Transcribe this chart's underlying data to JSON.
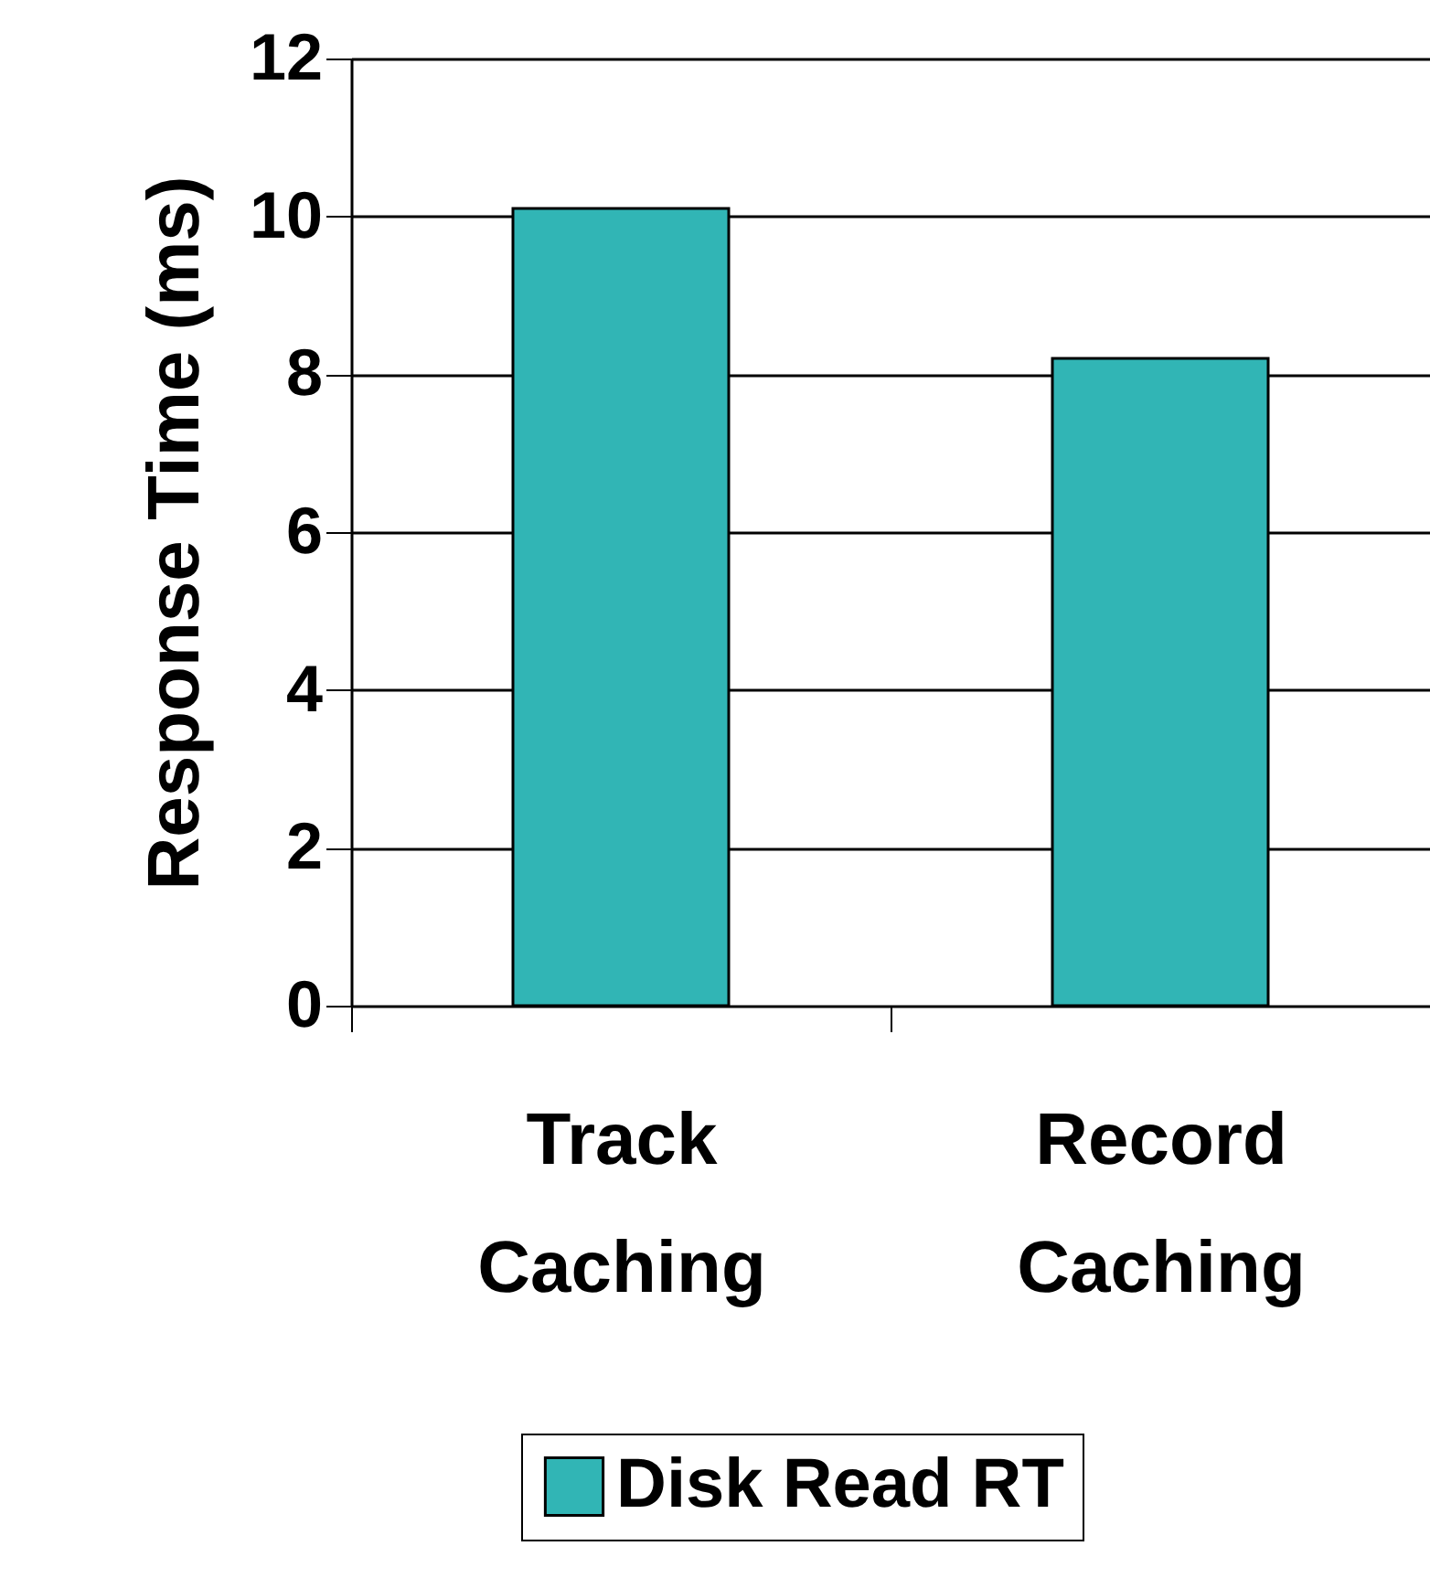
{
  "chart_data": {
    "type": "bar",
    "ylabel": "Response Time (ms)",
    "categories": [
      "Track Caching",
      "Record Caching"
    ],
    "series": [
      {
        "name": "Disk Read RT",
        "color": "#31b5b5",
        "values": [
          10.1,
          8.2
        ]
      }
    ],
    "ylim": [
      0,
      12
    ],
    "yticks": [
      0,
      2,
      4,
      6,
      8,
      10,
      12
    ],
    "grid": "y",
    "legend": "bottom"
  }
}
